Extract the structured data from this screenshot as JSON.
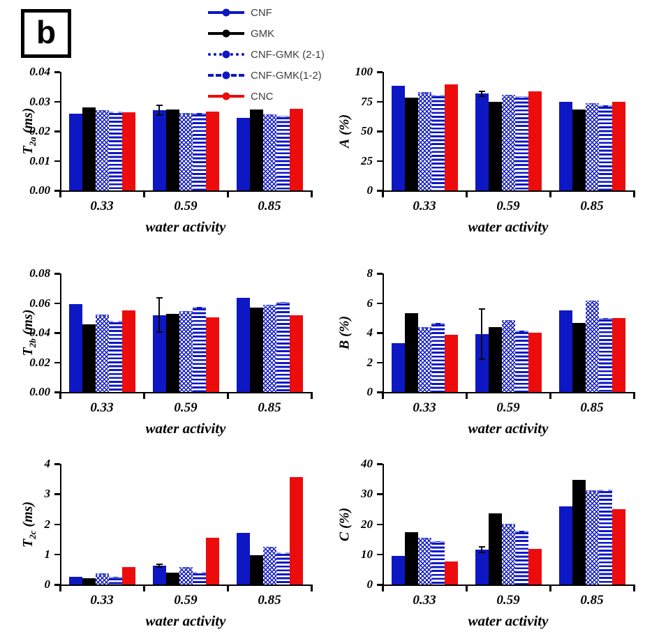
{
  "panel_label": "b",
  "colors": {
    "blue": "#0d17c3",
    "black": "#000000",
    "red": "#ed0c0c",
    "legend_text": "#3f3f3f",
    "axis": "#000000"
  },
  "legend": {
    "items": [
      {
        "label": "CNF",
        "color": "#0d17c3",
        "line": "solid"
      },
      {
        "label": "GMK",
        "color": "#000000",
        "line": "solid"
      },
      {
        "label": "CNF-GMK (2-1)",
        "color": "#0d17c3",
        "line": "dotted"
      },
      {
        "label": "CNF-GMK(1-2)",
        "color": "#0d17c3",
        "line": "dashed"
      },
      {
        "label": "CNC",
        "color": "#ed0c0c",
        "line": "solid"
      }
    ]
  },
  "chart_data": [
    {
      "id": "T2a",
      "type": "bar",
      "ylabel_main": "T",
      "ylabel_sub": "2a",
      "ylabel_unit": "(ms)",
      "xlabel": "water activity",
      "categories": [
        "0.33",
        "0.59",
        "0.85"
      ],
      "ylim": [
        0,
        0.04
      ],
      "yticks": [
        0,
        0.01,
        0.02,
        0.03,
        0.04
      ],
      "ytick_labels": [
        "0.00",
        "0.01",
        "0.02",
        "0.03",
        "0.04"
      ],
      "grid": false,
      "series": [
        {
          "name": "CNF",
          "values": [
            0.026,
            0.027,
            0.0245
          ],
          "errors": [
            null,
            0.0016,
            null
          ]
        },
        {
          "name": "GMK",
          "values": [
            0.028,
            0.0273,
            0.0274
          ]
        },
        {
          "name": "CNF-GMK (2-1)",
          "values": [
            0.027,
            0.0262,
            0.0256
          ]
        },
        {
          "name": "CNF-GMK(1-2)",
          "values": [
            0.0267,
            0.0261,
            0.0251
          ]
        },
        {
          "name": "CNC",
          "values": [
            0.0264,
            0.0266,
            0.0275
          ]
        }
      ]
    },
    {
      "id": "A",
      "type": "bar",
      "ylabel_main": "A",
      "ylabel_sub": "",
      "ylabel_unit": "(%)",
      "xlabel": "water activity",
      "categories": [
        "0.33",
        "0.59",
        "0.85"
      ],
      "ylim": [
        0,
        100
      ],
      "yticks": [
        0,
        25,
        50,
        75,
        100
      ],
      "ytick_labels": [
        "0",
        "25",
        "50",
        "75",
        "100"
      ],
      "grid": false,
      "series": [
        {
          "name": "CNF",
          "values": [
            88,
            81.5,
            74.5
          ],
          "errors": [
            null,
            2,
            null
          ]
        },
        {
          "name": "GMK",
          "values": [
            78.5,
            75,
            68
          ]
        },
        {
          "name": "CNF-GMK (2-1)",
          "values": [
            83,
            80.5,
            73.5
          ]
        },
        {
          "name": "CNF-GMK(1-2)",
          "values": [
            80.5,
            79.5,
            71.5
          ]
        },
        {
          "name": "CNC",
          "values": [
            89.5,
            83.5,
            75
          ]
        }
      ]
    },
    {
      "id": "T2b",
      "type": "bar",
      "ylabel_main": "T",
      "ylabel_sub": "2b",
      "ylabel_unit": "(ms)",
      "xlabel": "water activity",
      "categories": [
        "0.33",
        "0.59",
        "0.85"
      ],
      "ylim": [
        0,
        0.08
      ],
      "yticks": [
        0,
        0.02,
        0.04,
        0.06,
        0.08
      ],
      "ytick_labels": [
        "0.00",
        "0.02",
        "0.04",
        "0.06",
        "0.08"
      ],
      "grid": false,
      "series": [
        {
          "name": "CNF",
          "values": [
            0.0593,
            0.052,
            0.0635
          ],
          "errors": [
            null,
            0.0115,
            null
          ]
        },
        {
          "name": "GMK",
          "values": [
            0.0455,
            0.0525,
            0.0568
          ]
        },
        {
          "name": "CNF-GMK (2-1)",
          "values": [
            0.0522,
            0.0545,
            0.0588
          ]
        },
        {
          "name": "CNF-GMK(1-2)",
          "values": [
            0.048,
            0.0573,
            0.0607
          ]
        },
        {
          "name": "CNC",
          "values": [
            0.0553,
            0.0502,
            0.0517
          ]
        }
      ]
    },
    {
      "id": "B",
      "type": "bar",
      "ylabel_main": "B",
      "ylabel_sub": "",
      "ylabel_unit": "(%)",
      "xlabel": "water activity",
      "categories": [
        "0.33",
        "0.59",
        "0.85"
      ],
      "ylim": [
        0,
        8
      ],
      "yticks": [
        0,
        2,
        4,
        6,
        8
      ],
      "ytick_labels": [
        "0",
        "2",
        "4",
        "6",
        "8"
      ],
      "grid": false,
      "series": [
        {
          "name": "CNF",
          "values": [
            3.3,
            3.9,
            5.5
          ],
          "errors": [
            null,
            1.7,
            null
          ]
        },
        {
          "name": "GMK",
          "values": [
            5.3,
            4.37,
            4.67
          ]
        },
        {
          "name": "CNF-GMK (2-1)",
          "values": [
            4.4,
            4.87,
            6.17
          ]
        },
        {
          "name": "CNF-GMK(1-2)",
          "values": [
            4.67,
            4.12,
            5.0
          ]
        },
        {
          "name": "CNC",
          "values": [
            3.85,
            4.0,
            4.97
          ]
        }
      ]
    },
    {
      "id": "T2c",
      "type": "bar",
      "ylabel_main": "T",
      "ylabel_sub": "2c",
      "ylabel_unit": "(ms)",
      "xlabel": "water activity",
      "categories": [
        "0.33",
        "0.59",
        "0.85"
      ],
      "ylim": [
        0,
        4
      ],
      "yticks": [
        0,
        1,
        2,
        3,
        4
      ],
      "ytick_labels": [
        "0",
        "1",
        "2",
        "3",
        "4"
      ],
      "grid": false,
      "series": [
        {
          "name": "CNF",
          "values": [
            0.25,
            0.62,
            1.7
          ],
          "errors": [
            null,
            0.05,
            null
          ]
        },
        {
          "name": "GMK",
          "values": [
            0.21,
            0.4,
            0.97
          ]
        },
        {
          "name": "CNF-GMK (2-1)",
          "values": [
            0.36,
            0.57,
            1.24
          ]
        },
        {
          "name": "CNF-GMK(1-2)",
          "values": [
            0.26,
            0.41,
            1.07
          ]
        },
        {
          "name": "CNC",
          "values": [
            0.58,
            1.55,
            3.55
          ]
        }
      ]
    },
    {
      "id": "C",
      "type": "bar",
      "ylabel_main": "C",
      "ylabel_sub": "",
      "ylabel_unit": "(%)",
      "xlabel": "water activity",
      "categories": [
        "0.33",
        "0.59",
        "0.85"
      ],
      "ylim": [
        0,
        40
      ],
      "yticks": [
        0,
        10,
        20,
        30,
        40
      ],
      "ytick_labels": [
        "0",
        "10",
        "20",
        "30",
        "40"
      ],
      "grid": false,
      "series": [
        {
          "name": "CNF",
          "values": [
            9.4,
            11.5,
            26
          ],
          "errors": [
            null,
            0.9,
            null
          ]
        },
        {
          "name": "GMK",
          "values": [
            17.3,
            23.5,
            34.7
          ]
        },
        {
          "name": "CNF-GMK (2-1)",
          "values": [
            15.6,
            20.2,
            31.3
          ]
        },
        {
          "name": "CNF-GMK(1-2)",
          "values": [
            14.4,
            17.8,
            31.4
          ]
        },
        {
          "name": "CNC",
          "values": [
            7.7,
            11.8,
            25
          ]
        }
      ]
    }
  ]
}
